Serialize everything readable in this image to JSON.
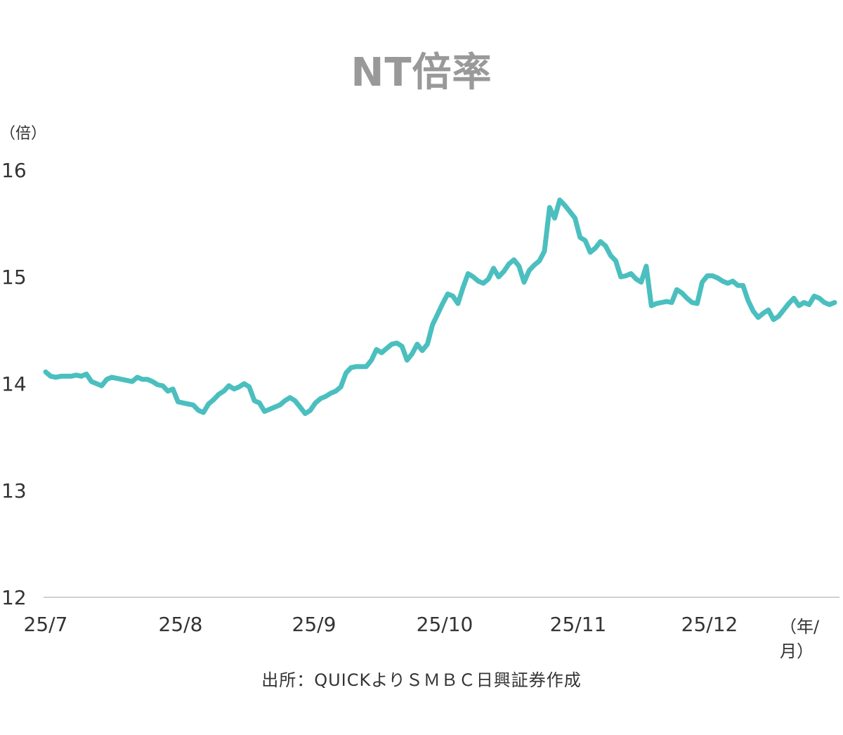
{
  "chart_data": {
    "type": "line",
    "title": "NT倍率",
    "ylabel": "（倍）",
    "xlabel": "（年/月）",
    "ylim": [
      12,
      16
    ],
    "yticks": [
      "12",
      "13",
      "14",
      "15",
      "16"
    ],
    "xticks": [
      "25/7",
      "25/8",
      "25/9",
      "25/10",
      "25/11",
      "25/12"
    ],
    "source": "出所：QUICKよりＳＭＢＣ日興証券作成",
    "line_color": "#4BBFBF",
    "series": [
      {
        "values": [
          14.11,
          14.07,
          14.06,
          14.07,
          14.07,
          14.07,
          14.08,
          14.07,
          14.09,
          14.02,
          14.0,
          13.98,
          14.04,
          14.06,
          14.05,
          14.04,
          14.03,
          14.02,
          14.06,
          14.04,
          14.04,
          14.02,
          13.99,
          13.98,
          13.93,
          13.95,
          13.83,
          13.82,
          13.81,
          13.8,
          13.75,
          13.73,
          13.81,
          13.85,
          13.9,
          13.93,
          13.98,
          13.95,
          13.97,
          14.0,
          13.97,
          13.84,
          13.82,
          13.74,
          13.76,
          13.78,
          13.8,
          13.84,
          13.87,
          13.84,
          13.78,
          13.72,
          13.75,
          13.82,
          13.86,
          13.88,
          13.91,
          13.93,
          13.97,
          14.1,
          14.15,
          14.16,
          14.16,
          14.16,
          14.22,
          14.32,
          14.29,
          14.33,
          14.37,
          14.38,
          14.35,
          14.22,
          14.28,
          14.37,
          14.31,
          14.37,
          14.55,
          14.65,
          14.75,
          14.84,
          14.82,
          14.75,
          14.9,
          15.03,
          15.0,
          14.96,
          14.94,
          14.98,
          15.08,
          15.0,
          15.05,
          15.12,
          15.16,
          15.1,
          14.95,
          15.06,
          15.11,
          15.15,
          15.24,
          15.65,
          15.55,
          15.72,
          15.67,
          15.61,
          15.55,
          15.37,
          15.34,
          15.23,
          15.27,
          15.33,
          15.29,
          15.2,
          15.15,
          15.0,
          15.01,
          15.03,
          14.98,
          14.95,
          15.1,
          14.73,
          14.75,
          14.76,
          14.77,
          14.76,
          14.88,
          14.85,
          14.8,
          14.76,
          14.75,
          14.95,
          15.01,
          15.01,
          14.99,
          14.96,
          14.94,
          14.96,
          14.92,
          14.92,
          14.78,
          14.68,
          14.62,
          14.66,
          14.69,
          14.6,
          14.63,
          14.69,
          14.75,
          14.8,
          14.73,
          14.76,
          14.74,
          14.82,
          14.8,
          14.76,
          14.74,
          14.76
        ]
      }
    ]
  }
}
